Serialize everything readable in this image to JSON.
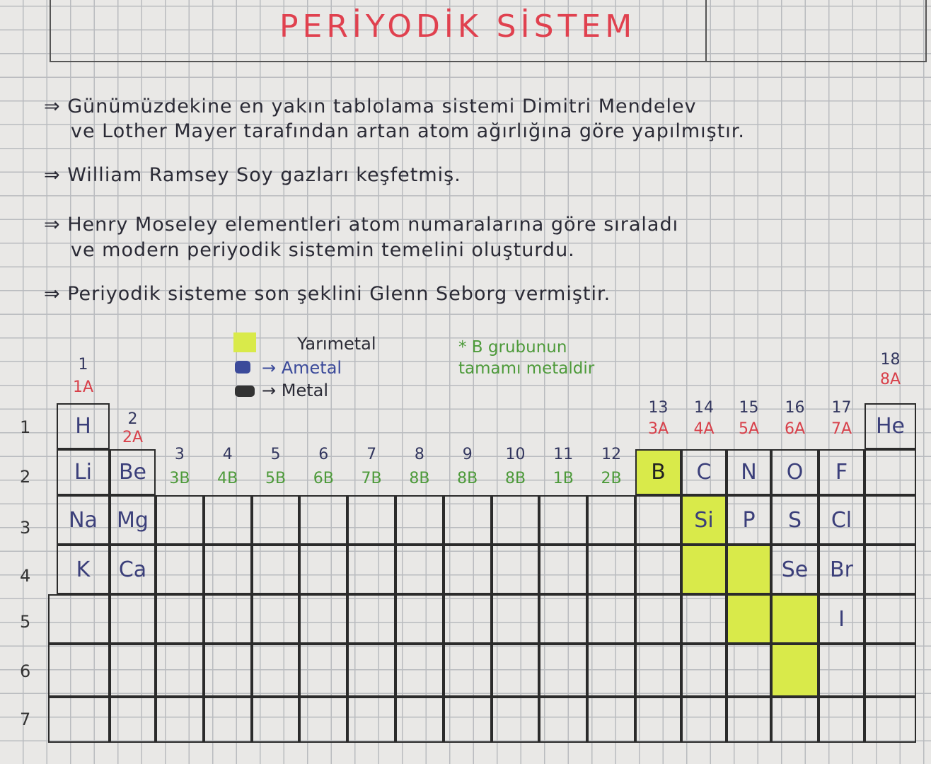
{
  "title": "PERİYODİK SİSTEM",
  "notes": [
    "⇒ Günümüzdekine en yakın tablolama sistemi Dimitri Mendelev",
    "ve Lother Mayer tarafından artan atom ağırlığına göre yapılmıştır.",
    "⇒ William Ramsey Soy gazları keşfetmiş.",
    "⇒ Henry Moseley elementleri atom numaralarına göre sıraladı",
    "ve modern periyodik sistemin temelini oluşturdu.",
    "⇒ Periyodik sisteme son şeklini Glenn Seborg vermiştir."
  ],
  "legend": {
    "semimetal": "Yarımetal",
    "nonmetal": "→ Ametal",
    "metal": "→ Metal",
    "b_note_1": "* B grubunun",
    "b_note_2": "tamamı metaldir",
    "semimetal_color": "#d9ea4a",
    "nonmetal_color": "#3b4a9a",
    "metal_color": "#333333"
  },
  "groups": [
    {
      "g": 1,
      "num": "1",
      "label": "1A"
    },
    {
      "g": 2,
      "num": "2",
      "label": "2A"
    },
    {
      "g": 3,
      "num": "3",
      "label": "3B"
    },
    {
      "g": 4,
      "num": "4",
      "label": "4B"
    },
    {
      "g": 5,
      "num": "5",
      "label": "5B"
    },
    {
      "g": 6,
      "num": "6",
      "label": "6B"
    },
    {
      "g": 7,
      "num": "7",
      "label": "7B"
    },
    {
      "g": 8,
      "num": "8",
      "label": "8B"
    },
    {
      "g": 9,
      "num": "9",
      "label": "8B"
    },
    {
      "g": 10,
      "num": "10",
      "label": "8B"
    },
    {
      "g": 11,
      "num": "11",
      "label": "1B"
    },
    {
      "g": 12,
      "num": "12",
      "label": "2B"
    },
    {
      "g": 13,
      "num": "13",
      "label": "3A"
    },
    {
      "g": 14,
      "num": "14",
      "label": "4A"
    },
    {
      "g": 15,
      "num": "15",
      "label": "5A"
    },
    {
      "g": 16,
      "num": "16",
      "label": "6A"
    },
    {
      "g": 17,
      "num": "17",
      "label": "7A"
    },
    {
      "g": 18,
      "num": "18",
      "label": "8A"
    }
  ],
  "periods": [
    "1",
    "2",
    "3",
    "4",
    "5",
    "6",
    "7"
  ],
  "elements": [
    {
      "s": "H",
      "p": 1,
      "g": 1
    },
    {
      "s": "He",
      "p": 1,
      "g": 18
    },
    {
      "s": "Li",
      "p": 2,
      "g": 1
    },
    {
      "s": "Be",
      "p": 2,
      "g": 2
    },
    {
      "s": "B",
      "p": 2,
      "g": 13,
      "semi": true
    },
    {
      "s": "C",
      "p": 2,
      "g": 14
    },
    {
      "s": "N",
      "p": 2,
      "g": 15
    },
    {
      "s": "O",
      "p": 2,
      "g": 16
    },
    {
      "s": "F",
      "p": 2,
      "g": 17
    },
    {
      "s": "Na",
      "p": 3,
      "g": 1
    },
    {
      "s": "Mg",
      "p": 3,
      "g": 2
    },
    {
      "s": "Si",
      "p": 3,
      "g": 14,
      "semi": true
    },
    {
      "s": "P",
      "p": 3,
      "g": 15
    },
    {
      "s": "S",
      "p": 3,
      "g": 16
    },
    {
      "s": "Cl",
      "p": 3,
      "g": 17
    },
    {
      "s": "K",
      "p": 4,
      "g": 1
    },
    {
      "s": "Ca",
      "p": 4,
      "g": 2
    },
    {
      "s": "",
      "p": 4,
      "g": 14,
      "semi": true
    },
    {
      "s": "",
      "p": 4,
      "g": 15,
      "semi": true
    },
    {
      "s": "Se",
      "p": 4,
      "g": 16
    },
    {
      "s": "Br",
      "p": 4,
      "g": 17
    },
    {
      "s": "",
      "p": 5,
      "g": 15,
      "semi": true
    },
    {
      "s": "",
      "p": 5,
      "g": 16,
      "semi": true
    },
    {
      "s": "I",
      "p": 5,
      "g": 17
    },
    {
      "s": "",
      "p": 6,
      "g": 16,
      "semi": true
    }
  ]
}
